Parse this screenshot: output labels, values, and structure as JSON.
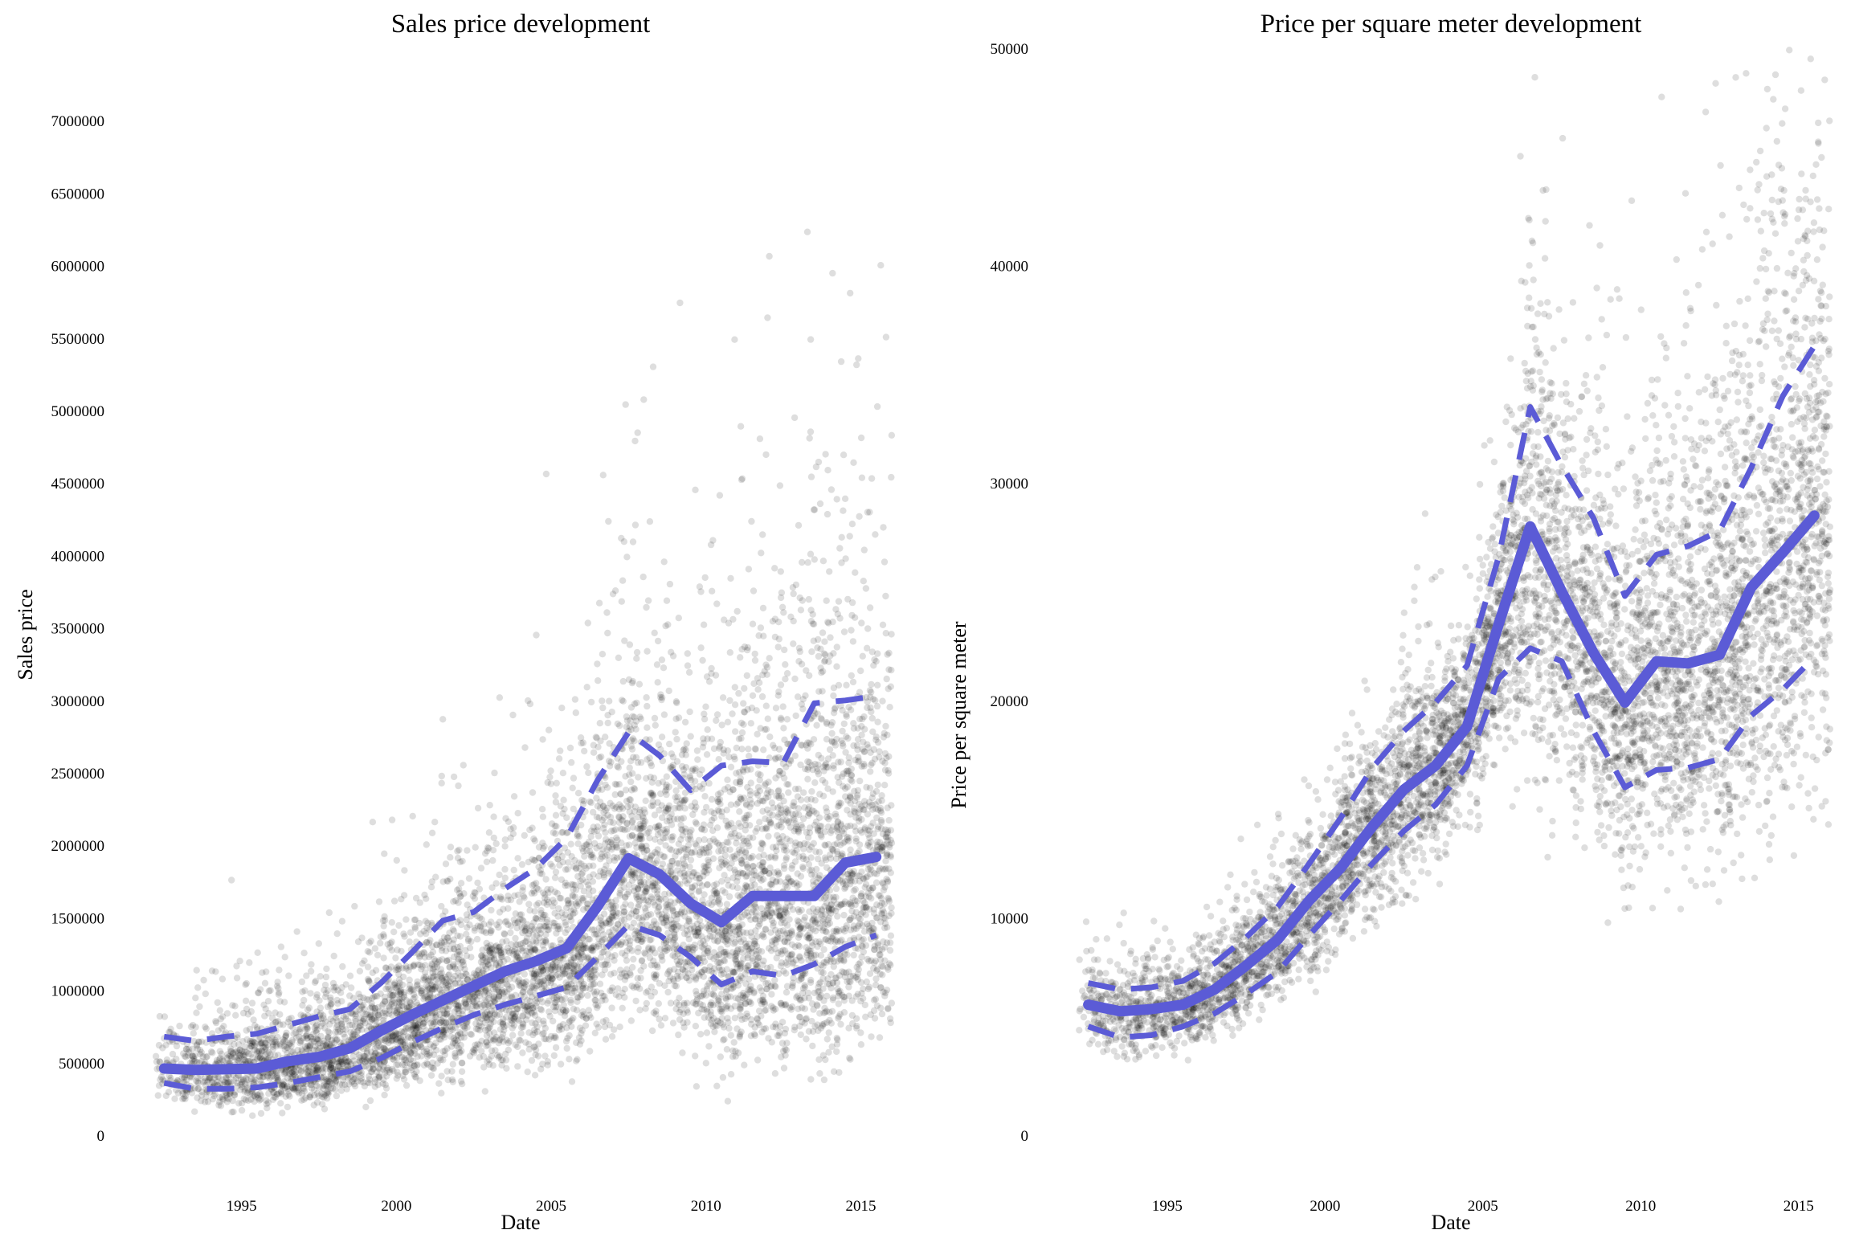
{
  "chart_data": [
    {
      "type": "scatter",
      "title": "Sales price development",
      "xlabel": "Date",
      "ylabel": "Sales price",
      "xlim": [
        1992.0,
        2016.0
      ],
      "ylim": [
        0,
        7500000
      ],
      "x_ticks": [
        "1995",
        "2000",
        "2005",
        "2010",
        "2015"
      ],
      "y_ticks": [
        "0",
        "500000",
        "1000000",
        "1500000",
        "2000000",
        "2500000",
        "3000000",
        "3500000",
        "4000000",
        "4500000",
        "5000000",
        "5500000",
        "6000000",
        "6500000",
        "7000000"
      ],
      "grid": false,
      "legend": "none",
      "colors": {
        "points": "#000000",
        "lines": "#5b5bd6"
      },
      "series": [
        {
          "role": "median",
          "style": "solid",
          "x": [
            1992.5,
            1993.5,
            1994.5,
            1995.5,
            1996.5,
            1997.5,
            1998.5,
            1999.5,
            2000.5,
            2001.5,
            2002.5,
            2003.5,
            2004.5,
            2005.5,
            2006.5,
            2007.5,
            2008.5,
            2009.5,
            2010.5,
            2011.5,
            2012.5,
            2013.5,
            2014.5,
            2015.5
          ],
          "values": [
            460000,
            450000,
            455000,
            460000,
            510000,
            540000,
            600000,
            720000,
            830000,
            930000,
            1030000,
            1130000,
            1200000,
            1290000,
            1580000,
            1910000,
            1800000,
            1600000,
            1470000,
            1650000,
            1650000,
            1650000,
            1880000,
            1920000
          ]
        },
        {
          "role": "upper-quantile",
          "style": "dashed",
          "x": [
            1992.5,
            1993.5,
            1994.5,
            1995.5,
            1996.5,
            1997.5,
            1998.5,
            1999.5,
            2000.5,
            2001.5,
            2002.5,
            2003.5,
            2004.5,
            2005.5,
            2006.5,
            2007.5,
            2008.5,
            2009.5,
            2010.5,
            2011.5,
            2012.5,
            2013.5,
            2014.5,
            2015.5
          ],
          "values": [
            680000,
            650000,
            680000,
            700000,
            760000,
            820000,
            870000,
            1050000,
            1260000,
            1480000,
            1540000,
            1700000,
            1840000,
            2050000,
            2450000,
            2780000,
            2620000,
            2380000,
            2550000,
            2580000,
            2570000,
            2980000,
            3000000,
            3030000
          ]
        },
        {
          "role": "lower-quantile",
          "style": "dashed",
          "x": [
            1992.5,
            1993.5,
            1994.5,
            1995.5,
            1996.5,
            1997.5,
            1998.5,
            1999.5,
            2000.5,
            2001.5,
            2002.5,
            2003.5,
            2004.5,
            2005.5,
            2006.5,
            2007.5,
            2008.5,
            2009.5,
            2010.5,
            2011.5,
            2012.5,
            2013.5,
            2014.5,
            2015.5
          ],
          "values": [
            360000,
            320000,
            320000,
            330000,
            360000,
            400000,
            440000,
            530000,
            640000,
            740000,
            830000,
            900000,
            960000,
            1020000,
            1230000,
            1450000,
            1380000,
            1230000,
            1040000,
            1130000,
            1100000,
            1180000,
            1300000,
            1380000
          ]
        }
      ]
    },
    {
      "type": "scatter",
      "title": "Price per square meter development",
      "xlabel": "Date",
      "ylabel": "Price per square meter",
      "xlim": [
        1992.0,
        2016.0
      ],
      "ylim": [
        0,
        50000
      ],
      "x_ticks": [
        "1995",
        "2000",
        "2005",
        "2010",
        "2015"
      ],
      "y_ticks": [
        "0",
        "10000",
        "20000",
        "30000",
        "40000",
        "50000"
      ],
      "grid": false,
      "legend": "none",
      "colors": {
        "points": "#000000",
        "lines": "#5b5bd6"
      },
      "series": [
        {
          "role": "median",
          "style": "solid",
          "x": [
            1992.5,
            1993.5,
            1994.5,
            1995.5,
            1996.5,
            1997.5,
            1998.5,
            1999.5,
            2000.5,
            2001.5,
            2002.5,
            2003.5,
            2004.5,
            2005.5,
            2006.5,
            2007.5,
            2008.5,
            2009.5,
            2010.5,
            2011.5,
            2012.5,
            2013.5,
            2014.5,
            2015.5
          ],
          "values": [
            6000,
            5700,
            5800,
            6000,
            6700,
            7800,
            9000,
            10800,
            12300,
            14200,
            15900,
            17000,
            18800,
            23500,
            28000,
            25000,
            22200,
            19900,
            21800,
            21700,
            22100,
            25200,
            26800,
            28500
          ]
        },
        {
          "role": "upper-quantile",
          "style": "dashed",
          "x": [
            1992.5,
            1993.5,
            1994.5,
            1995.5,
            1996.5,
            1997.5,
            1998.5,
            1999.5,
            2000.5,
            2001.5,
            2002.5,
            2003.5,
            2004.5,
            2005.5,
            2006.5,
            2007.5,
            2008.5,
            2009.5,
            2010.5,
            2011.5,
            2012.5,
            2013.5,
            2014.5,
            2015.5
          ],
          "values": [
            7000,
            6700,
            6800,
            7100,
            7900,
            9100,
            10500,
            12500,
            14600,
            16900,
            18600,
            19900,
            21600,
            26600,
            33500,
            30800,
            28400,
            24800,
            26700,
            27100,
            27800,
            30700,
            34000,
            36300
          ]
        },
        {
          "role": "lower-quantile",
          "style": "dashed",
          "x": [
            1992.5,
            1993.5,
            1994.5,
            1995.5,
            1996.5,
            1997.5,
            1998.5,
            1999.5,
            2000.5,
            2001.5,
            2002.5,
            2003.5,
            2004.5,
            2005.5,
            2006.5,
            2007.5,
            2008.5,
            2009.5,
            2010.5,
            2011.5,
            2012.5,
            2013.5,
            2014.5,
            2015.5
          ],
          "values": [
            5000,
            4500,
            4600,
            5000,
            5600,
            6500,
            7500,
            9200,
            10800,
            12500,
            14000,
            15200,
            17000,
            21000,
            22400,
            21800,
            18600,
            16000,
            16800,
            16900,
            17300,
            19300,
            20500,
            22000
          ]
        }
      ]
    }
  ]
}
